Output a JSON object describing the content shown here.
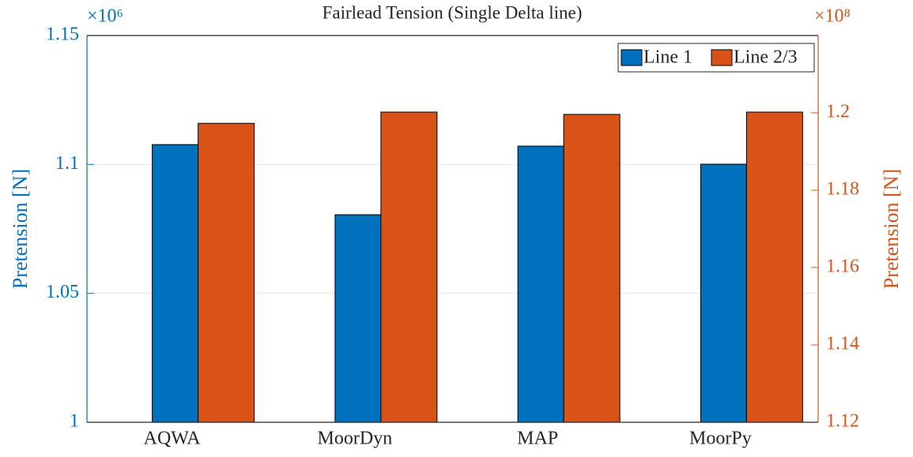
{
  "chart_data": {
    "type": "bar",
    "title": "Fairlead Tension (Single Delta line)",
    "ylabel": "Pretension [N]",
    "y2label": "Pretension [N]",
    "y_multiplier": "×10⁶",
    "y2_multiplier": "×10⁸",
    "categories": [
      "AQWA",
      "MoorDyn",
      "MAP",
      "MoorPy"
    ],
    "series": [
      {
        "name": "Line 1",
        "color": "#0072BD",
        "axis": "y",
        "values": [
          1.1077,
          1.0805,
          1.1071,
          1.1001
        ]
      },
      {
        "name": "Line 2/3",
        "color": "#D95319",
        "axis": "y2",
        "values": [
          1.1973,
          1.2002,
          1.1996,
          1.2002
        ]
      }
    ],
    "ylim": [
      1,
      1.15
    ],
    "yticks": [
      1,
      1.05,
      1.1,
      1.15
    ],
    "y2lim": [
      1.12,
      1.22
    ],
    "y2ticks": [
      1.12,
      1.14,
      1.16,
      1.18,
      1.2
    ],
    "grid": true,
    "legend": "top-right"
  }
}
